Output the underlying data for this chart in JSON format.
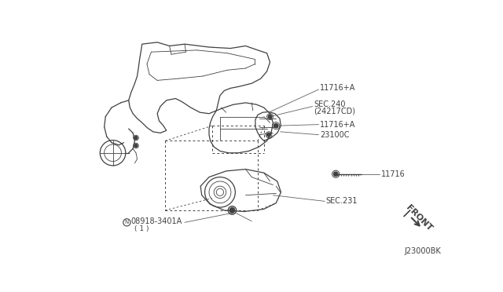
{
  "bg_color": "#ffffff",
  "line_color": "#404040",
  "text_color": "#404040",
  "figsize": [
    6.4,
    3.72
  ],
  "dpi": 100,
  "labels": {
    "11716A_top": "11716+A",
    "SEC240": "SEC.240",
    "24217CD": "(24217CD)",
    "11716A_mid": "11716+A",
    "23100C": "23100C",
    "11716": "11716",
    "SEC231": "SEC.231",
    "part_num": "08918-3401A",
    "part_qty": "( 1 )",
    "FRONT": "FRONT",
    "J23000BK": "J23000BK"
  }
}
